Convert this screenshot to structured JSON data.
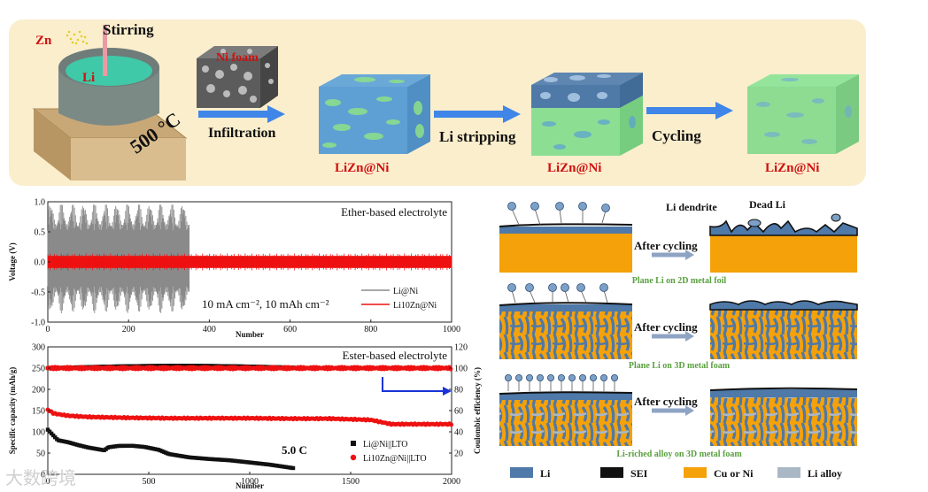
{
  "process": {
    "zn_label": "Zn",
    "stirring_label": "Stirring",
    "li_label": "Li",
    "temperature_label": "500 °C",
    "ni_foam_label": "Ni foam",
    "step1_label": "Infiltration",
    "step2_label": "Li stripping",
    "step3_label": "Cycling",
    "result1_label": "LiZn@Ni",
    "result2_label": "LiZn@Ni",
    "result3_label": "LiZn@Ni",
    "colors": {
      "banner": "#fbeecd",
      "arrow": "#3f86e8",
      "teal": "#45c4a6",
      "red": "#d01010"
    }
  },
  "chart_data": [
    {
      "type": "line",
      "title": "Ether-based electrolyte",
      "annotation": "10 mA cm⁻², 10 mAh cm⁻²",
      "xlabel": "Number",
      "ylabel": "Voltage (V)",
      "xlim": [
        0,
        1000
      ],
      "ylim": [
        -1.0,
        1.0
      ],
      "xticks": [
        "0",
        "200",
        "400",
        "600",
        "800",
        "1000"
      ],
      "yticks": [
        "1.0",
        "0.5",
        "0.0",
        "-0.5",
        "-1.0"
      ],
      "legend_position": "bottom-right",
      "series": [
        {
          "name": "Li@Ni",
          "color": "#8a8a8a",
          "x": [
            0,
            350
          ],
          "upper": [
            0.95,
            0.95
          ],
          "lower": [
            -0.9,
            -0.95
          ],
          "note": "short-circuit/failure at ~350 cycles"
        },
        {
          "name": "Li10Zn@Ni",
          "color": "#ee1111",
          "x": [
            0,
            1000
          ],
          "upper": [
            0.1,
            0.1
          ],
          "lower": [
            -0.1,
            -0.1
          ]
        }
      ]
    },
    {
      "type": "scatter",
      "title": "Ester-based electrolyte",
      "annotation": "5.0 C",
      "xlabel": "Number",
      "ylabel": "Specific capacity (mAh/g)",
      "y2label": "Coulombic efficiency (%)",
      "xlim": [
        0,
        2000
      ],
      "ylim": [
        0,
        300
      ],
      "y2lim": [
        0,
        120
      ],
      "xticks": [
        "0",
        "500",
        "1000",
        "1500",
        "2000"
      ],
      "yticks": [
        "300",
        "250",
        "200",
        "150",
        "100",
        "50",
        "0"
      ],
      "y2ticks": [
        "120",
        "100",
        "80",
        "60",
        "40",
        "20"
      ],
      "legend_position": "bottom-right",
      "series": [
        {
          "name": "Li@Ni||LTO",
          "color": "#111111",
          "axis": "capacity",
          "x": [
            0,
            20,
            50,
            100,
            150,
            200,
            280,
            300,
            350,
            420,
            480,
            550,
            600,
            700,
            800,
            900,
            1000,
            1100,
            1220
          ],
          "y": [
            105,
            95,
            80,
            75,
            68,
            62,
            55,
            62,
            65,
            65,
            62,
            55,
            45,
            37,
            33,
            30,
            25,
            20,
            12
          ]
        },
        {
          "name": "Li10Zn@Ni||LTO",
          "color": "#ee1111",
          "axis": "capacity",
          "x": [
            0,
            30,
            100,
            200,
            400,
            600,
            800,
            1000,
            1200,
            1400,
            1600,
            1650,
            1700,
            1800,
            1900,
            2000
          ],
          "y": [
            152,
            143,
            138,
            135,
            133,
            132,
            132,
            132,
            131,
            131,
            128,
            123,
            118,
            118,
            118,
            118
          ]
        },
        {
          "name": "Li@Ni||LTO CE",
          "color": "#111111",
          "axis": "efficiency",
          "x": [
            0,
            30,
            100,
            300,
            500,
            800,
            1000,
            1220
          ],
          "y": [
            100,
            100,
            100,
            100,
            100,
            100,
            100,
            100
          ]
        },
        {
          "name": "Li10Zn@Ni||LTO CE",
          "color": "#ee1111",
          "axis": "efficiency",
          "x": [
            0,
            500,
            1000,
            1500,
            2000
          ],
          "y": [
            100,
            100,
            100,
            100,
            100
          ]
        }
      ]
    }
  ],
  "schematic": {
    "li_dendrite_label": "Li dendrite",
    "dead_li_label": "Dead Li",
    "after_cycling_1": "After cycling",
    "after_cycling_2": "After cycling",
    "after_cycling_3": "After cycling",
    "caption1": "Plane Li on 2D metal foil",
    "caption2": "Plane Li on 3D metal foam",
    "caption3": "Li-riched alloy on 3D metal foam",
    "legend": [
      {
        "label": "Li",
        "color": "#4e79a8"
      },
      {
        "label": "SEI",
        "color": "#111111"
      },
      {
        "label": "Cu or Ni",
        "color": "#f5a10a"
      },
      {
        "label": "Li alloy",
        "color": "#aab8c6"
      }
    ]
  },
  "watermark": "大数跨境"
}
